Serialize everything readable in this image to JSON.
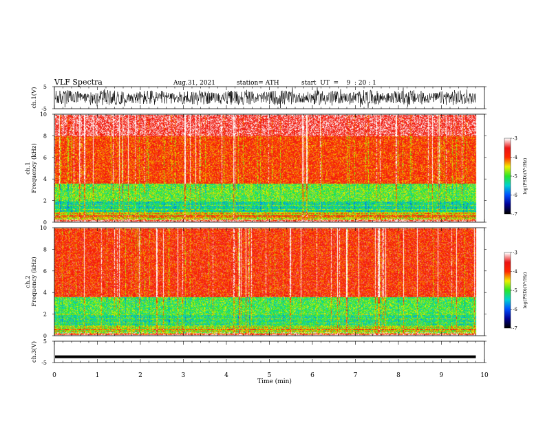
{
  "header": {
    "title": "VLF  Spectra",
    "date": "Aug.31, 2021",
    "station": "station= ATH",
    "start": "start  UT  =    9  : 20 : 1"
  },
  "chart_data": [
    {
      "type": "line",
      "name": "ch1-waveform",
      "ylabel": "ch.1(V)",
      "ylim": [
        -5,
        5
      ],
      "yticks": [
        "5",
        "-5"
      ],
      "x_range": [
        0,
        9.8
      ],
      "amplitude_description_values": {
        "typical_peak": 3.5
      }
    },
    {
      "type": "heatmap",
      "name": "ch1-spectrogram",
      "ylabel": "ch.1\nFrequency  (kHz)",
      "ylim": [
        0,
        10
      ],
      "yticks": [
        "0",
        "2",
        "4",
        "6",
        "8",
        "10"
      ],
      "x_range": [
        0,
        9.8
      ],
      "bands": [
        {
          "from": 0,
          "to": 0.3,
          "level": -4.3
        },
        {
          "from": 0.3,
          "to": 1.0,
          "level": -4.6
        },
        {
          "from": 1.0,
          "to": 2.0,
          "level": -5.3
        },
        {
          "from": 2.0,
          "to": 3.6,
          "level": -4.9
        },
        {
          "from": 3.6,
          "to": 8.0,
          "level": -3.9
        },
        {
          "from": 8.0,
          "to": 10,
          "level": -3.4
        }
      ],
      "colorbar": {
        "label": "log(PSD)(V²/Hz)",
        "range": [
          -7,
          -3
        ],
        "ticks": [
          "-3",
          "-4",
          "-5",
          "-6",
          "-7"
        ]
      }
    },
    {
      "type": "heatmap",
      "name": "ch2-spectrogram",
      "ylabel": "ch.2\nFrequency  (kHz)",
      "ylim": [
        0,
        10
      ],
      "yticks": [
        "0",
        "2",
        "4",
        "6",
        "8",
        "10"
      ],
      "x_range": [
        0,
        9.8
      ],
      "bands": [
        {
          "from": 0,
          "to": 0.3,
          "level": -4.5
        },
        {
          "from": 0.3,
          "to": 1.0,
          "level": -4.8
        },
        {
          "from": 1.0,
          "to": 2.0,
          "level": -5.2
        },
        {
          "from": 2.0,
          "to": 3.6,
          "level": -5.0
        },
        {
          "from": 3.6,
          "to": 10,
          "level": -3.8
        }
      ],
      "colorbar": {
        "label": "log(PSD)(V²/Hz)",
        "range": [
          -7,
          -3
        ],
        "ticks": [
          "-3",
          "-4",
          "-5",
          "-6",
          "-7"
        ]
      }
    },
    {
      "type": "line",
      "name": "ch3-waveform",
      "ylabel": "ch.3(V)",
      "ylim": [
        -5,
        5
      ],
      "yticks": [
        "5",
        "-5"
      ],
      "x_range": [
        0,
        9.8
      ],
      "level": -2.3
    }
  ],
  "xaxis": {
    "label": "Time  (min)",
    "ticks": [
      "0",
      "1",
      "2",
      "3",
      "4",
      "5",
      "6",
      "7",
      "8",
      "9",
      "10"
    ],
    "range": [
      0,
      10
    ]
  },
  "colors": {
    "frame": "#000000",
    "waveform": "#000000"
  }
}
